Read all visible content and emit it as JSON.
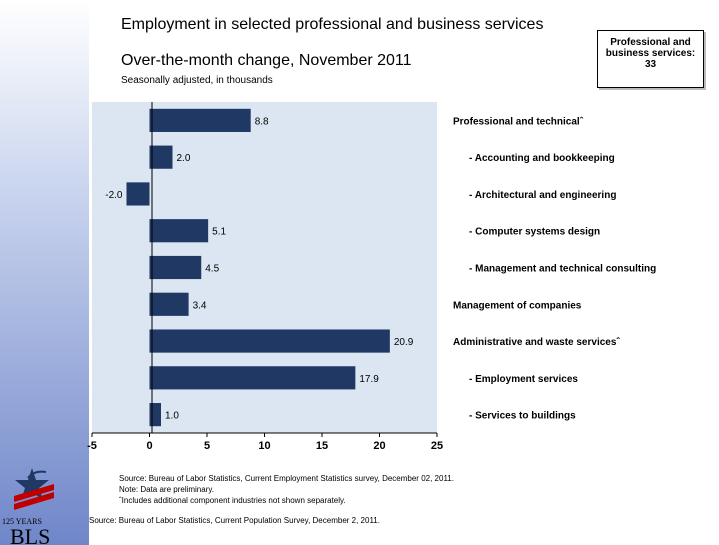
{
  "title": "Employment in selected professional and business services",
  "subtitle": "Over-the-month change, November 2011",
  "note": "Seasonally adjusted, in thousands",
  "callout": {
    "line1": "Professional and",
    "line2": "business services:",
    "line3": "33"
  },
  "chart_data": {
    "type": "bar",
    "orientation": "horizontal",
    "categories": [
      "Professional and technicalˆ",
      "- Accounting and bookkeeping",
      "- Architectural and engineering",
      "- Computer systems design",
      "- Management and technical consulting",
      "Management of companies",
      "Administrative and waste servicesˆ",
      "- Employment services",
      "- Services to buildings"
    ],
    "values": [
      8.8,
      2.0,
      -2.0,
      5.1,
      4.5,
      3.4,
      20.9,
      17.9,
      1.0
    ],
    "data_labels": [
      "8.8",
      "2.0",
      "-2.0",
      "5.1",
      "4.5",
      "3.4",
      "20.9",
      "17.9",
      "1.0"
    ],
    "xlim": [
      -5,
      25
    ],
    "xticks": [
      "-5",
      "0",
      "5",
      "10",
      "15",
      "20",
      "25"
    ],
    "grid": false
  },
  "sources": {
    "line1": "Source: Bureau of Labor Statistics, Current Employment Statistics survey, December 02, 2011.",
    "line2": "Note: Data are preliminary.",
    "line3": "ˆIncludes additional component industries not shown separately.",
    "bottom": "Source:  Bureau of Labor Statistics, Current Population Survey, December 2, 2011."
  },
  "logo": {
    "years": "125 YEARS",
    "name": "BLS"
  },
  "colors": {
    "bar": "#1f3864",
    "plot_bg": "#dce6f2",
    "left_band": "#6f86c9"
  }
}
